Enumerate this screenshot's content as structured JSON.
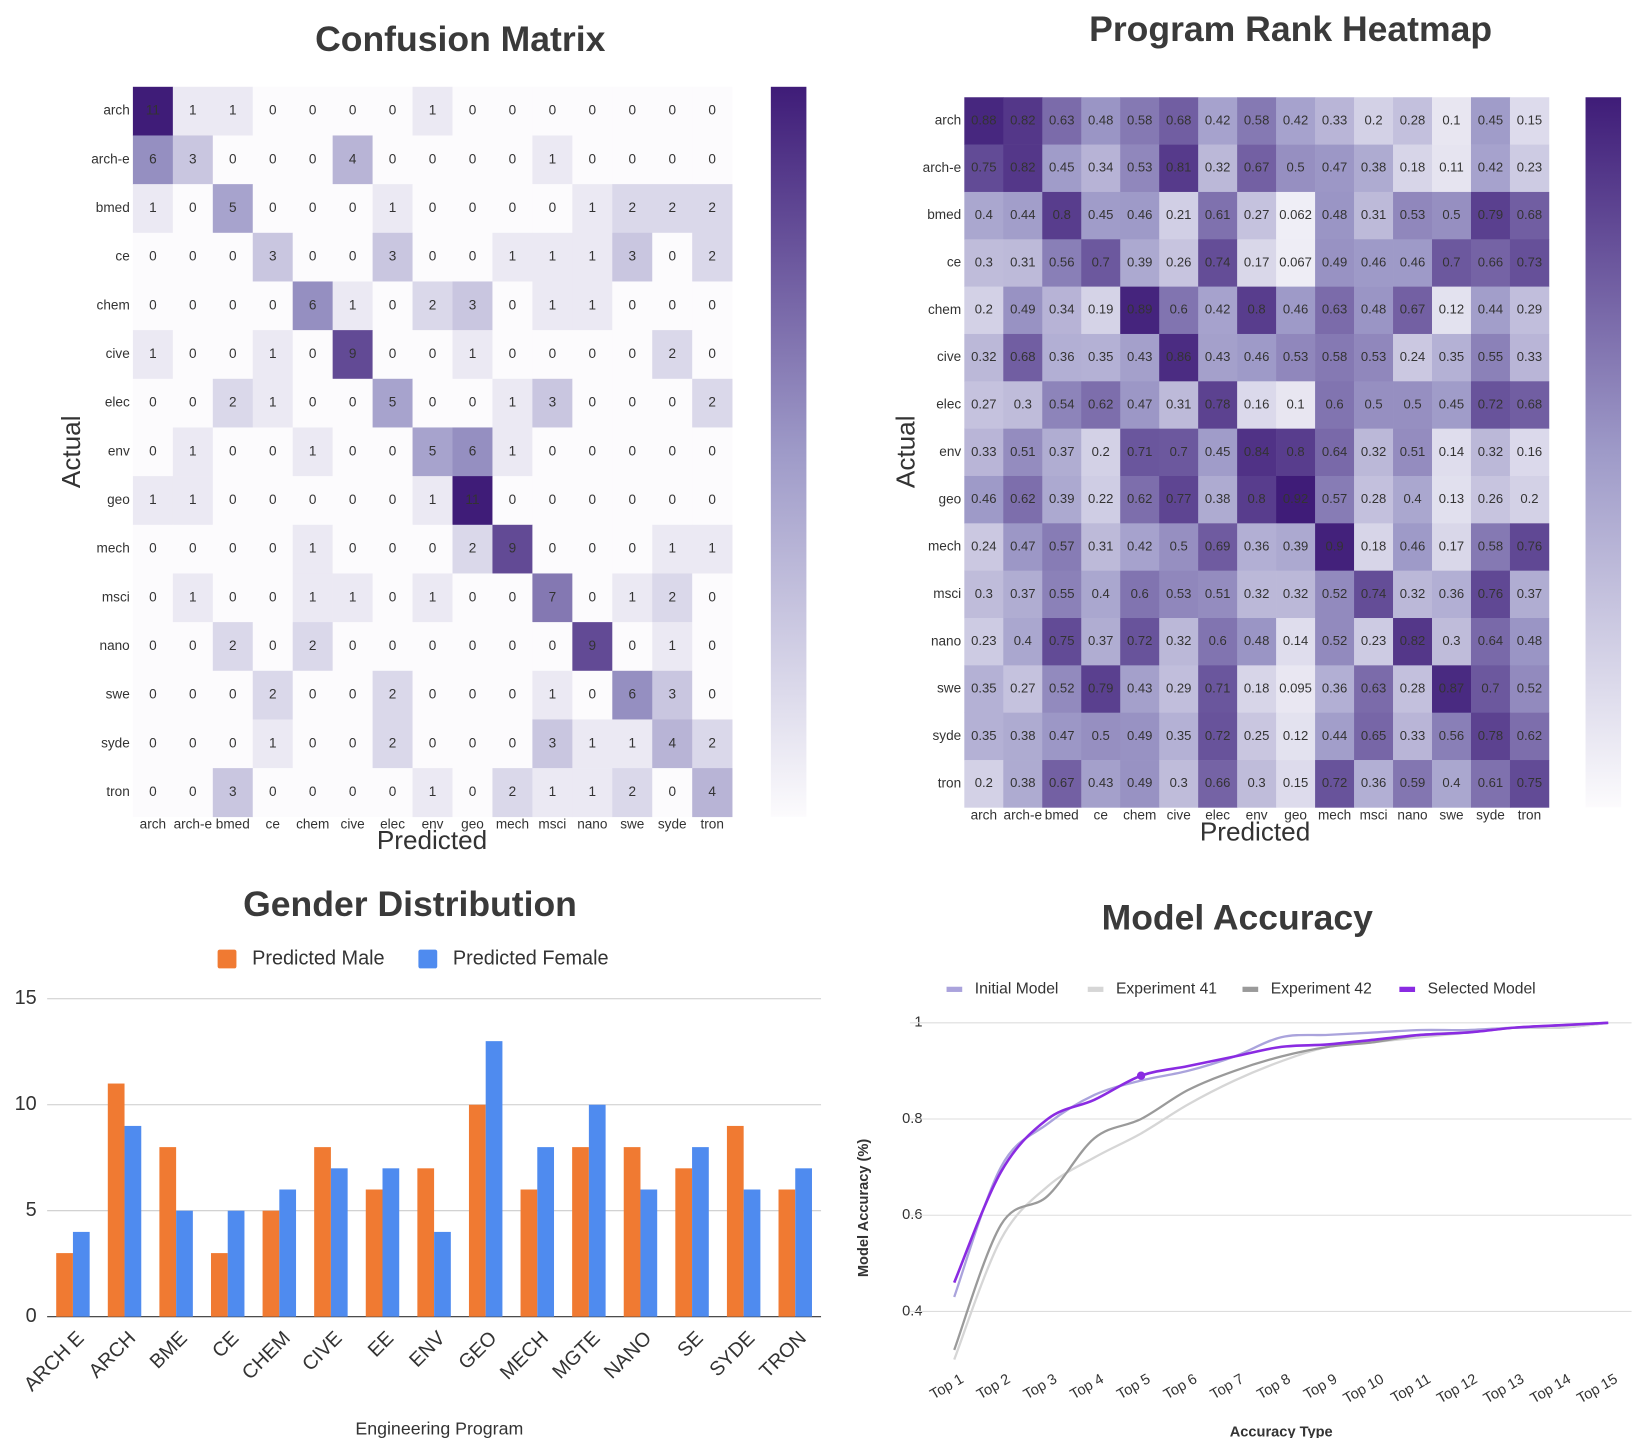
{
  "chart_data": [
    {
      "type": "heatmap",
      "title": "Confusion Matrix",
      "xlabel": "Predicted",
      "ylabel": "Actual",
      "x_categories": [
        "arch",
        "arch-e",
        "bmed",
        "ce",
        "chem",
        "cive",
        "elec",
        "env",
        "geo",
        "mech",
        "msci",
        "nano",
        "swe",
        "syde",
        "tron"
      ],
      "y_categories": [
        "arch",
        "arch-e",
        "bmed",
        "ce",
        "chem",
        "cive",
        "elec",
        "env",
        "geo",
        "mech",
        "msci",
        "nano",
        "swe",
        "syde",
        "tron"
      ],
      "values": [
        [
          11,
          1,
          1,
          0,
          0,
          0,
          0,
          1,
          0,
          0,
          0,
          0,
          0,
          0,
          0
        ],
        [
          6,
          3,
          0,
          0,
          0,
          4,
          0,
          0,
          0,
          0,
          1,
          0,
          0,
          0,
          0
        ],
        [
          1,
          0,
          5,
          0,
          0,
          0,
          1,
          0,
          0,
          0,
          0,
          1,
          2,
          2,
          2
        ],
        [
          0,
          0,
          0,
          3,
          0,
          0,
          3,
          0,
          0,
          1,
          1,
          1,
          3,
          0,
          2
        ],
        [
          0,
          0,
          0,
          0,
          6,
          1,
          0,
          2,
          3,
          0,
          1,
          1,
          0,
          0,
          0
        ],
        [
          1,
          0,
          0,
          1,
          0,
          9,
          0,
          0,
          1,
          0,
          0,
          0,
          0,
          2,
          0
        ],
        [
          0,
          0,
          2,
          1,
          0,
          0,
          5,
          0,
          0,
          1,
          3,
          0,
          0,
          0,
          2
        ],
        [
          0,
          1,
          0,
          0,
          1,
          0,
          0,
          5,
          6,
          1,
          0,
          0,
          0,
          0,
          0
        ],
        [
          1,
          1,
          0,
          0,
          0,
          0,
          0,
          1,
          11,
          0,
          0,
          0,
          0,
          0,
          0
        ],
        [
          0,
          0,
          0,
          0,
          1,
          0,
          0,
          0,
          2,
          9,
          0,
          0,
          0,
          1,
          1
        ],
        [
          0,
          1,
          0,
          0,
          1,
          1,
          0,
          1,
          0,
          0,
          7,
          0,
          1,
          2,
          0
        ],
        [
          0,
          0,
          2,
          0,
          2,
          0,
          0,
          0,
          0,
          0,
          0,
          9,
          0,
          1,
          0
        ],
        [
          0,
          0,
          0,
          2,
          0,
          0,
          2,
          0,
          0,
          0,
          1,
          0,
          6,
          3,
          0
        ],
        [
          0,
          0,
          0,
          1,
          0,
          0,
          2,
          0,
          0,
          0,
          3,
          1,
          1,
          4,
          2
        ],
        [
          0,
          0,
          3,
          0,
          0,
          0,
          0,
          1,
          0,
          2,
          1,
          1,
          2,
          0,
          4
        ]
      ],
      "zlim": [
        0,
        11
      ],
      "colors": [
        "#fcfbfd",
        "#9e9ac8",
        "#3f1c78"
      ],
      "colorbar": true
    },
    {
      "type": "heatmap",
      "title": "Program Rank Heatmap",
      "xlabel": "Predicted",
      "ylabel": "Actual",
      "x_categories": [
        "arch",
        "arch-e",
        "bmed",
        "ce",
        "chem",
        "cive",
        "elec",
        "env",
        "geo",
        "mech",
        "msci",
        "nano",
        "swe",
        "syde",
        "tron"
      ],
      "y_categories": [
        "arch",
        "arch-e",
        "bmed",
        "ce",
        "chem",
        "cive",
        "elec",
        "env",
        "geo",
        "mech",
        "msci",
        "nano",
        "swe",
        "syde",
        "tron"
      ],
      "values": [
        [
          0.88,
          0.82,
          0.63,
          0.48,
          0.58,
          0.68,
          0.42,
          0.58,
          0.42,
          0.33,
          0.2,
          0.28,
          0.1,
          0.45,
          0.15
        ],
        [
          0.75,
          0.82,
          0.45,
          0.34,
          0.53,
          0.81,
          0.32,
          0.67,
          0.5,
          0.47,
          0.38,
          0.18,
          0.11,
          0.42,
          0.23
        ],
        [
          0.4,
          0.44,
          0.8,
          0.45,
          0.46,
          0.21,
          0.61,
          0.27,
          0.062,
          0.48,
          0.31,
          0.53,
          0.5,
          0.79,
          0.68
        ],
        [
          0.3,
          0.31,
          0.56,
          0.7,
          0.39,
          0.26,
          0.74,
          0.17,
          0.067,
          0.49,
          0.46,
          0.46,
          0.7,
          0.66,
          0.73
        ],
        [
          0.2,
          0.49,
          0.34,
          0.19,
          0.89,
          0.6,
          0.42,
          0.8,
          0.46,
          0.63,
          0.48,
          0.67,
          0.12,
          0.44,
          0.29
        ],
        [
          0.32,
          0.68,
          0.36,
          0.35,
          0.43,
          0.86,
          0.43,
          0.46,
          0.53,
          0.58,
          0.53,
          0.24,
          0.35,
          0.55,
          0.33
        ],
        [
          0.27,
          0.3,
          0.54,
          0.62,
          0.47,
          0.31,
          0.78,
          0.16,
          0.1,
          0.6,
          0.5,
          0.5,
          0.45,
          0.72,
          0.68
        ],
        [
          0.33,
          0.51,
          0.37,
          0.2,
          0.71,
          0.7,
          0.45,
          0.84,
          0.8,
          0.64,
          0.32,
          0.51,
          0.14,
          0.32,
          0.16
        ],
        [
          0.46,
          0.62,
          0.39,
          0.22,
          0.62,
          0.77,
          0.38,
          0.8,
          0.92,
          0.57,
          0.28,
          0.4,
          0.13,
          0.26,
          0.2
        ],
        [
          0.24,
          0.47,
          0.57,
          0.31,
          0.42,
          0.5,
          0.69,
          0.36,
          0.39,
          0.9,
          0.18,
          0.46,
          0.17,
          0.58,
          0.76
        ],
        [
          0.3,
          0.37,
          0.55,
          0.4,
          0.6,
          0.53,
          0.51,
          0.32,
          0.32,
          0.52,
          0.74,
          0.32,
          0.36,
          0.76,
          0.37
        ],
        [
          0.23,
          0.4,
          0.75,
          0.37,
          0.72,
          0.32,
          0.6,
          0.48,
          0.14,
          0.52,
          0.23,
          0.82,
          0.3,
          0.64,
          0.48
        ],
        [
          0.35,
          0.27,
          0.52,
          0.79,
          0.43,
          0.29,
          0.71,
          0.18,
          0.095,
          0.36,
          0.63,
          0.28,
          0.87,
          0.7,
          0.52
        ],
        [
          0.35,
          0.38,
          0.47,
          0.5,
          0.49,
          0.35,
          0.72,
          0.25,
          0.12,
          0.44,
          0.65,
          0.33,
          0.56,
          0.78,
          0.62
        ],
        [
          0.2,
          0.38,
          0.67,
          0.43,
          0.49,
          0.3,
          0.66,
          0.3,
          0.15,
          0.72,
          0.36,
          0.59,
          0.4,
          0.61,
          0.75
        ]
      ],
      "zlim": [
        0,
        0.92
      ],
      "colors": [
        "#fcfbfd",
        "#9e9ac8",
        "#3f1c78"
      ],
      "colorbar": true
    },
    {
      "type": "bar",
      "title": "Gender Distribution",
      "xlabel": "Engineering Program",
      "categories": [
        "ARCH E",
        "ARCH",
        "BME",
        "CE",
        "CHEM",
        "CIVE",
        "EE",
        "ENV",
        "GEO",
        "MECH",
        "MGTE",
        "NANO",
        "SE",
        "SYDE",
        "TRON"
      ],
      "series": [
        {
          "name": "Predicted Male",
          "color": "#f07a32",
          "values": [
            3,
            11,
            8,
            3,
            5,
            8,
            6,
            7,
            10,
            6,
            8,
            8,
            7,
            9,
            6
          ]
        },
        {
          "name": "Predicted Female",
          "color": "#4f8bef",
          "values": [
            4,
            9,
            5,
            5,
            6,
            7,
            7,
            4,
            13,
            8,
            10,
            6,
            8,
            6,
            7
          ]
        }
      ],
      "ylim": [
        0,
        15
      ],
      "yticks": [
        0,
        5,
        10,
        15
      ],
      "grid": true,
      "legend": "top"
    },
    {
      "type": "line",
      "title": "Model Accuracy",
      "xlabel": "Accuracy Type",
      "ylabel": "Model Accuracy (%)",
      "categories": [
        "Top 1",
        "Top 2",
        "Top 3",
        "Top 4",
        "Top 5",
        "Top 6",
        "Top 7",
        "Top 8",
        "Top 9",
        "Top 10",
        "Top 11",
        "Top 12",
        "Top 13",
        "Top 14",
        "Top 15"
      ],
      "series": [
        {
          "name": "Initial Model",
          "color": "#aaa3dc",
          "values": [
            0.43,
            0.7,
            0.79,
            0.85,
            0.88,
            0.9,
            0.93,
            0.97,
            0.975,
            0.98,
            0.985,
            0.985,
            0.99,
            0.99,
            1.0
          ]
        },
        {
          "name": "Experiment 41",
          "color": "#d6d6d6",
          "values": [
            0.3,
            0.55,
            0.66,
            0.72,
            0.77,
            0.83,
            0.88,
            0.92,
            0.95,
            0.96,
            0.97,
            0.98,
            0.99,
            0.99,
            1.0
          ]
        },
        {
          "name": "Experiment 42",
          "color": "#9a9a9a",
          "values": [
            0.32,
            0.58,
            0.64,
            0.76,
            0.8,
            0.86,
            0.9,
            0.93,
            0.95,
            0.96,
            0.975,
            0.98,
            0.99,
            0.995,
            1.0
          ]
        },
        {
          "name": "Selected Model",
          "color": "#8a2be2",
          "values": [
            0.46,
            0.69,
            0.8,
            0.84,
            0.89,
            0.91,
            0.93,
            0.95,
            0.955,
            0.965,
            0.975,
            0.98,
            0.99,
            0.995,
            1.0
          ],
          "highlight": 4
        }
      ],
      "ylim": [
        0.3,
        1
      ],
      "yticks": [
        0.4,
        0.6,
        0.8,
        1
      ],
      "grid": true,
      "legend": "top"
    }
  ]
}
